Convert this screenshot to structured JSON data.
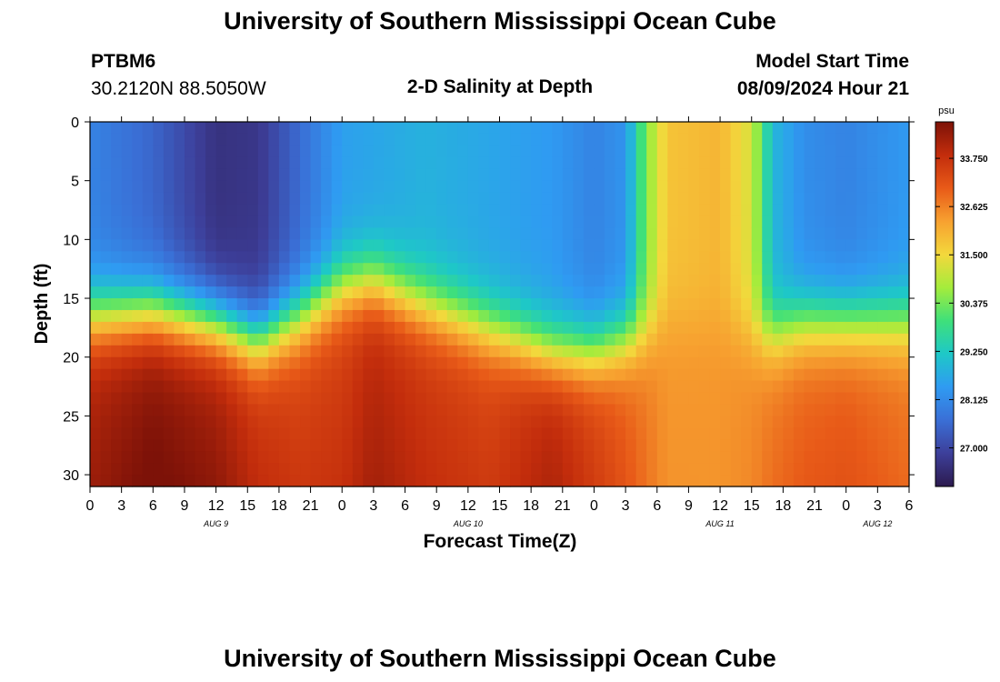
{
  "page": {
    "title": "University of Southern Mississippi Ocean Cube",
    "footer_title": "University of Southern Mississippi Ocean Cube",
    "station": "PTBM6",
    "location": "30.2120N  88.5050W",
    "model_start_label": "Model Start Time",
    "model_start_value": "08/09/2024 Hour 21"
  },
  "chart_data": {
    "type": "heatmap",
    "title": "2-D Salinity at Depth",
    "xlabel": "Forecast Time(Z)",
    "ylabel": "Depth (ft)",
    "x_hours": [
      0,
      78
    ],
    "x_tick_labels": [
      "0",
      "3",
      "6",
      "9",
      "12",
      "15",
      "18",
      "21",
      "0",
      "3",
      "6",
      "9",
      "12",
      "15",
      "18",
      "21",
      "0",
      "3",
      "6",
      "9",
      "12",
      "15",
      "18",
      "21",
      "0",
      "3",
      "6"
    ],
    "date_labels": [
      {
        "label": "AUG 9",
        "hour": 12
      },
      {
        "label": "AUG 10",
        "hour": 36
      },
      {
        "label": "AUG 11",
        "hour": 60
      },
      {
        "label": "AUG 12",
        "hour": 75
      }
    ],
    "ylim": [
      0,
      31
    ],
    "y_ticks": [
      0,
      5,
      10,
      15,
      20,
      25,
      30
    ],
    "colorbar": {
      "unit": "psu",
      "vmin": 26.1,
      "vmax": 34.6,
      "ticks": [
        "33.750",
        "32.625",
        "31.500",
        "30.375",
        "29.250",
        "28.125",
        "27.000"
      ],
      "colors": [
        "#2c1a4e",
        "#3d3f9a",
        "#3a6fd6",
        "#2f9bf2",
        "#1ec8c7",
        "#3fe07a",
        "#a4ec3c",
        "#f3d83c",
        "#f7a130",
        "#e85a18",
        "#c32d0c",
        "#7d1208"
      ]
    },
    "salinity_profiles": [
      {
        "hour": 0,
        "s_surf": 28.0,
        "s_deep": 34.0,
        "thermocline_ft": 16.5
      },
      {
        "hour": 6,
        "s_surf": 27.5,
        "s_deep": 34.4,
        "thermocline_ft": 16.0
      },
      {
        "hour": 12,
        "s_surf": 26.6,
        "s_deep": 34.1,
        "thermocline_ft": 17.0
      },
      {
        "hour": 16,
        "s_surf": 26.7,
        "s_deep": 33.6,
        "thermocline_ft": 18.5
      },
      {
        "hour": 20,
        "s_surf": 27.6,
        "s_deep": 33.4,
        "thermocline_ft": 16.5
      },
      {
        "hour": 24,
        "s_surf": 28.5,
        "s_deep": 33.5,
        "thermocline_ft": 14.0
      },
      {
        "hour": 27,
        "s_surf": 28.6,
        "s_deep": 33.9,
        "thermocline_ft": 13.5
      },
      {
        "hour": 32,
        "s_surf": 28.8,
        "s_deep": 33.6,
        "thermocline_ft": 15.5
      },
      {
        "hour": 38,
        "s_surf": 28.6,
        "s_deep": 33.4,
        "thermocline_ft": 17.5
      },
      {
        "hour": 44,
        "s_surf": 28.4,
        "s_deep": 33.9,
        "thermocline_ft": 19.5
      },
      {
        "hour": 48,
        "s_surf": 28.0,
        "s_deep": 33.4,
        "thermocline_ft": 19.5
      },
      {
        "hour": 51,
        "s_surf": 28.3,
        "s_deep": 33.0,
        "thermocline_ft": 18.5
      },
      {
        "hour": 53,
        "s_surf": 30.5,
        "s_deep": 32.7,
        "thermocline_ft": 18.0
      },
      {
        "hour": 55,
        "s_surf": 31.8,
        "s_deep": 32.4,
        "thermocline_ft": 17.0
      },
      {
        "hour": 60,
        "s_surf": 32.0,
        "s_deep": 32.4,
        "thermocline_ft": 17.0
      },
      {
        "hour": 63,
        "s_surf": 31.2,
        "s_deep": 32.5,
        "thermocline_ft": 18.0
      },
      {
        "hour": 65,
        "s_surf": 28.9,
        "s_deep": 32.7,
        "thermocline_ft": 18.0
      },
      {
        "hour": 68,
        "s_surf": 28.2,
        "s_deep": 32.9,
        "thermocline_ft": 17.0
      },
      {
        "hour": 72,
        "s_surf": 28.0,
        "s_deep": 33.0,
        "thermocline_ft": 17.0
      },
      {
        "hour": 78,
        "s_surf": 28.4,
        "s_deep": 32.7,
        "thermocline_ft": 17.0
      }
    ]
  }
}
